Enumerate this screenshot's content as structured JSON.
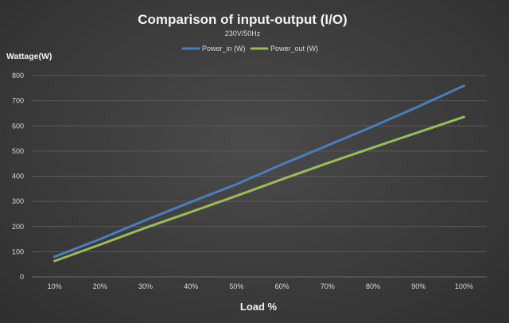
{
  "chart_data": {
    "type": "line",
    "title": "Comparison of input-output (I/O)",
    "subtitle": "230V/50Hz",
    "xlabel": "Load %",
    "ylabel": "Wattage(W)",
    "categories": [
      "10%",
      "20%",
      "30%",
      "40%",
      "50%",
      "60%",
      "70%",
      "80%",
      "90%",
      "100%"
    ],
    "ylim": [
      0,
      800
    ],
    "yticks": [
      "0",
      "100",
      "200",
      "300",
      "400",
      "500",
      "600",
      "700",
      "800"
    ],
    "grid": true,
    "legend_position": "top-center",
    "series": [
      {
        "name": "Power_in (W)",
        "color": "#4a7ebb",
        "values": [
          80,
          150,
          225,
          298,
          368,
          447,
          522,
          598,
          677,
          760
        ]
      },
      {
        "name": "Power_out (W)",
        "color": "#9bbb59",
        "values": [
          63,
          128,
          195,
          258,
          322,
          388,
          452,
          514,
          575,
          636
        ]
      }
    ]
  }
}
